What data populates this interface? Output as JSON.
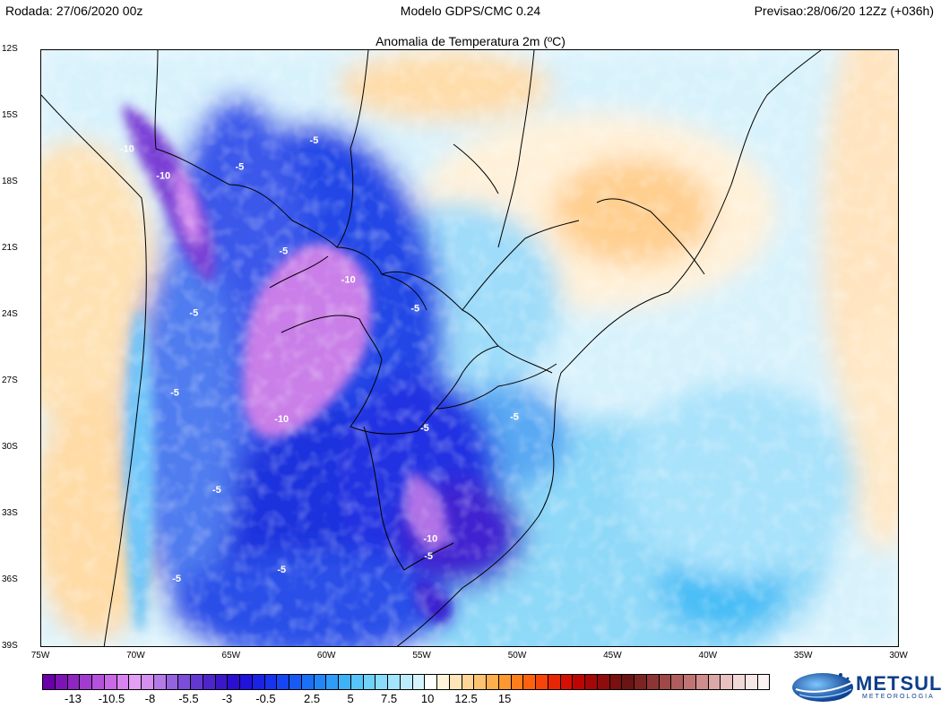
{
  "header": {
    "run": "Rodada: 27/06/2020 00z",
    "model": "Modelo GDPS/CMC 0.24",
    "forecast": "Previsao:28/06/20 12Zz (+036h)"
  },
  "subtitle": "Anomalia de Temperatura 2m (ºC)",
  "lat_labels": [
    "12S",
    "15S",
    "18S",
    "21S",
    "24S",
    "27S",
    "30S",
    "33S",
    "36S",
    "39S"
  ],
  "lon_labels": [
    "75W",
    "70W",
    "65W",
    "60W",
    "55W",
    "50W",
    "45W",
    "40W",
    "35W",
    "30W"
  ],
  "contour_labels": [
    {
      "text": "-10",
      "lon": -70.5,
      "lat": -16.6
    },
    {
      "text": "-10",
      "lon": -68.6,
      "lat": -17.8
    },
    {
      "text": "-5",
      "lon": -64.6,
      "lat": -17.4
    },
    {
      "text": "-5",
      "lon": -60.7,
      "lat": -16.2
    },
    {
      "text": "-5",
      "lon": -62.3,
      "lat": -21.2
    },
    {
      "text": "-10",
      "lon": -58.9,
      "lat": -22.5
    },
    {
      "text": "-5",
      "lon": -67.0,
      "lat": -24.0
    },
    {
      "text": "-5",
      "lon": -55.4,
      "lat": -23.8
    },
    {
      "text": "-5",
      "lon": -68.0,
      "lat": -27.6
    },
    {
      "text": "-10",
      "lon": -62.4,
      "lat": -28.8
    },
    {
      "text": "-5",
      "lon": -54.9,
      "lat": -29.2
    },
    {
      "text": "-5",
      "lon": -50.2,
      "lat": -28.7
    },
    {
      "text": "-5",
      "lon": -65.8,
      "lat": -32.0
    },
    {
      "text": "-10",
      "lon": -54.6,
      "lat": -34.2
    },
    {
      "text": "-5",
      "lon": -54.7,
      "lat": -35.0
    },
    {
      "text": "-5",
      "lon": -62.4,
      "lat": -35.6
    },
    {
      "text": "-5",
      "lon": -67.9,
      "lat": -36.0
    }
  ],
  "colorbar": {
    "labels": [
      "-13",
      "-10.5",
      "-8",
      "-5.5",
      "-3",
      "-0.5",
      "2.5",
      "5",
      "7.5",
      "10",
      "12.5",
      "15"
    ],
    "min": -15,
    "max": 15,
    "step": 0.8,
    "colors": [
      "#6a00a8",
      "#7d12b5",
      "#9026c2",
      "#a23bcf",
      "#b552db",
      "#c86ae5",
      "#d884ee",
      "#e39ff4",
      "#d58ff0",
      "#b47ae8",
      "#9463e0",
      "#7a4ed8",
      "#6338d1",
      "#4e25cb",
      "#3b17c7",
      "#2b0fd0",
      "#2112dd",
      "#1a22e6",
      "#1733ee",
      "#1646f3",
      "#175af5",
      "#1a70f6",
      "#2286f7",
      "#2e9cf8",
      "#3fb1f9",
      "#56c4fa",
      "#70d2fb",
      "#8adcfc",
      "#a3e5fd",
      "#bdedfd",
      "#d5f4fe",
      "#ffffff",
      "#fff4da",
      "#ffe5b8",
      "#ffd496",
      "#ffc271",
      "#ffae4e",
      "#ff9830",
      "#ff7e1a",
      "#ff620d",
      "#f74408",
      "#e82605",
      "#d41004",
      "#be0504",
      "#a50807",
      "#8f0c0c",
      "#7a1010",
      "#6a1414",
      "#7c2424",
      "#8d3535",
      "#9f4848",
      "#b05d5d",
      "#c07474",
      "#cf8d8d",
      "#dca7a7",
      "#e8c1c1",
      "#f2d9d9",
      "#f7e8e8",
      "#fbf3f3"
    ]
  },
  "logo": {
    "name": "METSUL",
    "subtitle": "METEOROLOGIA"
  }
}
